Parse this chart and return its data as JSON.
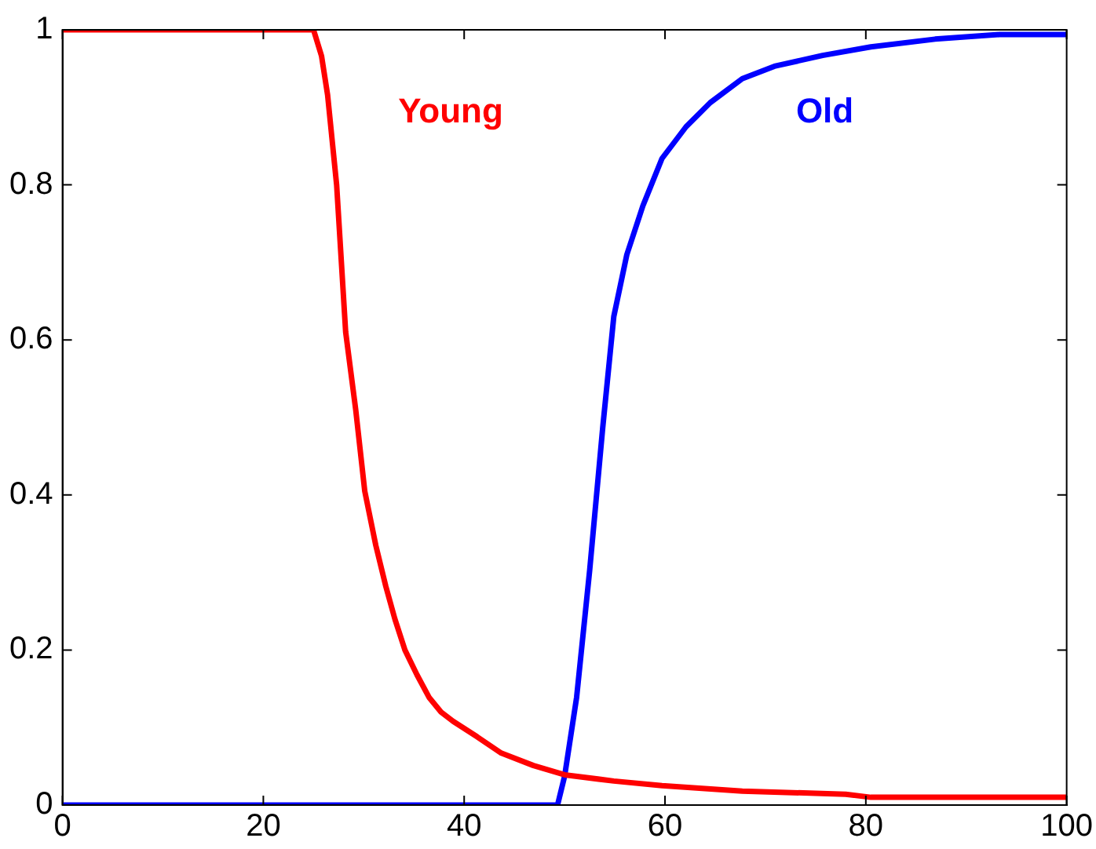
{
  "chart_data": {
    "type": "line",
    "xlim": [
      0,
      100
    ],
    "ylim": [
      0,
      1
    ],
    "xticks": [
      0,
      20,
      40,
      60,
      80,
      100
    ],
    "yticks": [
      0,
      0.2,
      0.4,
      0.6,
      0.8,
      1
    ],
    "grid": false,
    "legend": false,
    "marker": "none",
    "line_style": "solid",
    "series": [
      {
        "name": "Young",
        "color": "#ff0000",
        "x": [
          0,
          25,
          25.8,
          26.4,
          27.3,
          28.2,
          29.2,
          30.1,
          31.2,
          32.2,
          33.1,
          34.1,
          35.3,
          36.5,
          37.7,
          38.9,
          41.3,
          43.7,
          46.9,
          50,
          54.9,
          59.7,
          67.7,
          78,
          80.5,
          100
        ],
        "values": [
          1,
          1,
          0.966,
          0.916,
          0.8,
          0.61,
          0.51,
          0.405,
          0.335,
          0.282,
          0.24,
          0.2,
          0.168,
          0.139,
          0.12,
          0.108,
          0.088,
          0.067,
          0.051,
          0.039,
          0.031,
          0.025,
          0.018,
          0.014,
          0.01,
          0.01
        ]
      },
      {
        "name": "Old",
        "color": "#0000ff",
        "x": [
          0,
          49.3,
          50,
          51.2,
          52.5,
          53.8,
          54.9,
          56.2,
          57.8,
          59.7,
          62.1,
          64.5,
          67.7,
          70.9,
          75.7,
          80.5,
          86.9,
          93.3,
          100
        ],
        "values": [
          0,
          0,
          0.037,
          0.139,
          0.303,
          0.487,
          0.63,
          0.71,
          0.773,
          0.834,
          0.875,
          0.906,
          0.937,
          0.953,
          0.967,
          0.978,
          0.988,
          0.994,
          0.994
        ]
      }
    ]
  }
}
